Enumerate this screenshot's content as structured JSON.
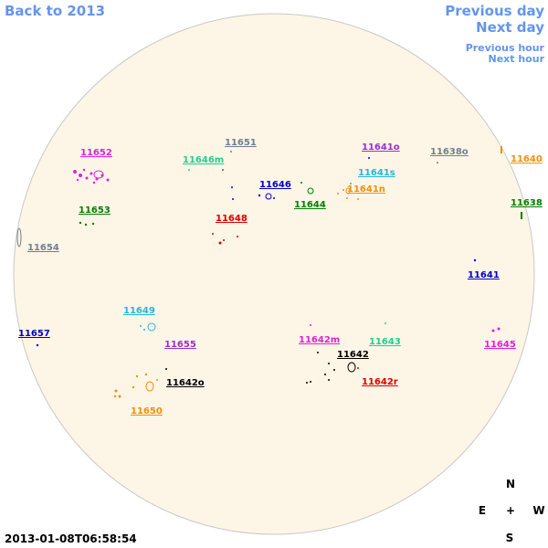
{
  "header": {
    "back": "Back to 2013",
    "previous_day": "Previous day",
    "next_day": "Next day",
    "previous_hour": "Previous hour",
    "next_hour": "Next hour"
  },
  "regions": [
    {
      "label": "11652",
      "color": "#e020e0"
    },
    {
      "label": "11651",
      "color": "#708090"
    },
    {
      "label": "11646m",
      "color": "#20d090"
    },
    {
      "label": "11641o",
      "color": "#9932cc"
    },
    {
      "label": "11638o",
      "color": "#708090"
    },
    {
      "label": "11640",
      "color": "#f0900a"
    },
    {
      "label": "11641s",
      "color": "#20b8e0"
    },
    {
      "label": "11646",
      "color": "#0000cc"
    },
    {
      "label": "11641n",
      "color": "#f0900a"
    },
    {
      "label": "11644",
      "color": "#008000"
    },
    {
      "label": "11653",
      "color": "#008000"
    },
    {
      "label": "11648",
      "color": "#e00000"
    },
    {
      "label": "11638",
      "color": "#008000"
    },
    {
      "label": "11654",
      "color": "#708090"
    },
    {
      "label": "11641",
      "color": "#0000cc"
    },
    {
      "label": "11649",
      "color": "#20b8e0"
    },
    {
      "label": "11657",
      "color": "#0000cc"
    },
    {
      "label": "11655",
      "color": "#9932cc"
    },
    {
      "label": "11642m",
      "color": "#e020e0"
    },
    {
      "label": "11643",
      "color": "#20d090"
    },
    {
      "label": "11645",
      "color": "#e020e0"
    },
    {
      "label": "11642",
      "color": "#000000"
    },
    {
      "label": "11642o",
      "color": "#000000"
    },
    {
      "label": "11642r",
      "color": "#e00000"
    },
    {
      "label": "11650",
      "color": "#f0900a"
    }
  ],
  "compass": {
    "north": "N",
    "east": "E",
    "center": "+",
    "west": "W",
    "south": "S"
  },
  "timestamp": "2013-01-08T06:58:54"
}
